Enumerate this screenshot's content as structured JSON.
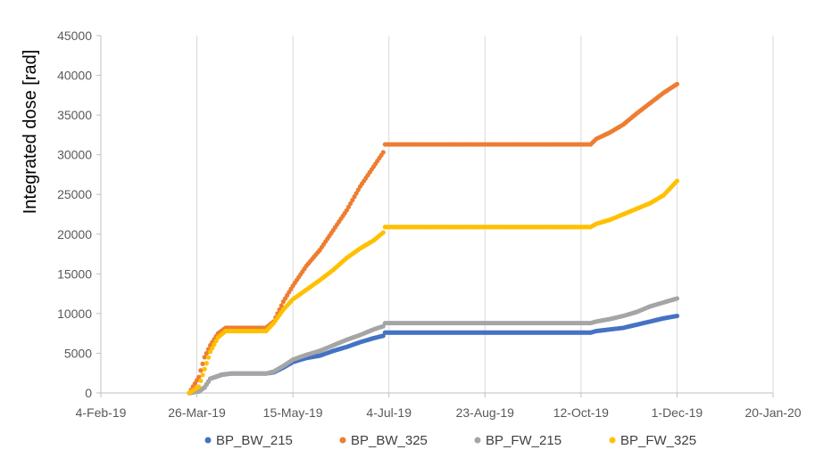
{
  "chart_data": {
    "type": "scatter",
    "title": "",
    "xlabel": "",
    "ylabel": "Integrated dose [rad]",
    "x_tick_labels": [
      "4-Feb-19",
      "26-Mar-19",
      "15-May-19",
      "4-Jul-19",
      "23-Aug-19",
      "12-Oct-19",
      "1-Dec-19",
      "20-Jan-20"
    ],
    "x_ticks": [
      "2019-02-04",
      "2019-03-26",
      "2019-05-15",
      "2019-07-04",
      "2019-08-23",
      "2019-10-12",
      "2019-12-01",
      "2020-01-20"
    ],
    "xlim": [
      "2019-02-04",
      "2020-01-20"
    ],
    "ylim": [
      0,
      45000
    ],
    "y_ticks": [
      0,
      5000,
      10000,
      15000,
      20000,
      25000,
      30000,
      35000,
      40000,
      45000
    ],
    "y_tick_labels": [
      "0",
      "5000",
      "10000",
      "15000",
      "20000",
      "25000",
      "30000",
      "35000",
      "40000",
      "45000"
    ],
    "grid": "vertical",
    "legend_position": "bottom",
    "series": [
      {
        "name": "BP_BW_215",
        "color": "#4472C4",
        "points": [
          [
            "2019-03-22",
            0
          ],
          [
            "2019-03-27",
            200
          ],
          [
            "2019-03-30",
            700
          ],
          [
            "2019-04-02",
            1800
          ],
          [
            "2019-04-08",
            2300
          ],
          [
            "2019-04-13",
            2450
          ],
          [
            "2019-05-01",
            2450
          ],
          [
            "2019-05-05",
            2600
          ],
          [
            "2019-05-10",
            3200
          ],
          [
            "2019-05-15",
            3900
          ],
          [
            "2019-05-22",
            4400
          ],
          [
            "2019-05-29",
            4700
          ],
          [
            "2019-06-05",
            5300
          ],
          [
            "2019-06-12",
            5800
          ],
          [
            "2019-06-19",
            6400
          ],
          [
            "2019-06-26",
            6900
          ],
          [
            "2019-07-01",
            7200
          ],
          [
            "2019-07-02",
            7600
          ],
          [
            "2019-10-17",
            7600
          ],
          [
            "2019-10-20",
            7800
          ],
          [
            "2019-10-27",
            8000
          ],
          [
            "2019-11-03",
            8200
          ],
          [
            "2019-11-10",
            8600
          ],
          [
            "2019-11-17",
            9000
          ],
          [
            "2019-11-24",
            9400
          ],
          [
            "2019-12-01",
            9700
          ]
        ]
      },
      {
        "name": "BP_BW_325",
        "color": "#ED7D31",
        "points": [
          [
            "2019-03-22",
            0
          ],
          [
            "2019-03-27",
            2000
          ],
          [
            "2019-03-30",
            4500
          ],
          [
            "2019-04-02",
            6000
          ],
          [
            "2019-04-06",
            7500
          ],
          [
            "2019-04-10",
            8200
          ],
          [
            "2019-04-15",
            8200
          ],
          [
            "2019-05-01",
            8200
          ],
          [
            "2019-05-05",
            9000
          ],
          [
            "2019-05-10",
            11500
          ],
          [
            "2019-05-15",
            13500
          ],
          [
            "2019-05-22",
            16000
          ],
          [
            "2019-05-29",
            18000
          ],
          [
            "2019-06-05",
            20500
          ],
          [
            "2019-06-12",
            23000
          ],
          [
            "2019-06-19",
            26000
          ],
          [
            "2019-06-26",
            28500
          ],
          [
            "2019-07-01",
            30300
          ],
          [
            "2019-07-02",
            31300
          ],
          [
            "2019-10-17",
            31300
          ],
          [
            "2019-10-20",
            32000
          ],
          [
            "2019-10-27",
            32800
          ],
          [
            "2019-11-03",
            33800
          ],
          [
            "2019-11-10",
            35200
          ],
          [
            "2019-11-17",
            36500
          ],
          [
            "2019-11-24",
            37800
          ],
          [
            "2019-12-01",
            38900
          ]
        ]
      },
      {
        "name": "BP_FW_215",
        "color": "#A5A5A5",
        "points": [
          [
            "2019-03-22",
            0
          ],
          [
            "2019-03-27",
            200
          ],
          [
            "2019-03-30",
            700
          ],
          [
            "2019-04-02",
            1800
          ],
          [
            "2019-04-08",
            2300
          ],
          [
            "2019-04-13",
            2450
          ],
          [
            "2019-05-01",
            2450
          ],
          [
            "2019-05-05",
            2700
          ],
          [
            "2019-05-10",
            3400
          ],
          [
            "2019-05-15",
            4200
          ],
          [
            "2019-05-22",
            4800
          ],
          [
            "2019-05-29",
            5300
          ],
          [
            "2019-06-05",
            6000
          ],
          [
            "2019-06-12",
            6700
          ],
          [
            "2019-06-19",
            7300
          ],
          [
            "2019-06-26",
            8000
          ],
          [
            "2019-07-01",
            8400
          ],
          [
            "2019-07-02",
            8800
          ],
          [
            "2019-10-17",
            8800
          ],
          [
            "2019-10-20",
            9000
          ],
          [
            "2019-10-27",
            9300
          ],
          [
            "2019-11-03",
            9700
          ],
          [
            "2019-11-10",
            10200
          ],
          [
            "2019-11-17",
            10900
          ],
          [
            "2019-11-24",
            11400
          ],
          [
            "2019-12-01",
            11900
          ]
        ]
      },
      {
        "name": "BP_FW_325",
        "color": "#FFC000",
        "points": [
          [
            "2019-03-22",
            0
          ],
          [
            "2019-03-27",
            800
          ],
          [
            "2019-03-30",
            3000
          ],
          [
            "2019-04-02",
            5200
          ],
          [
            "2019-04-06",
            7000
          ],
          [
            "2019-04-10",
            7800
          ],
          [
            "2019-04-15",
            7800
          ],
          [
            "2019-05-01",
            7800
          ],
          [
            "2019-05-05",
            8800
          ],
          [
            "2019-05-10",
            10500
          ],
          [
            "2019-05-15",
            11800
          ],
          [
            "2019-05-22",
            13000
          ],
          [
            "2019-05-29",
            14200
          ],
          [
            "2019-06-05",
            15500
          ],
          [
            "2019-06-12",
            17000
          ],
          [
            "2019-06-19",
            18200
          ],
          [
            "2019-06-26",
            19200
          ],
          [
            "2019-07-01",
            20200
          ],
          [
            "2019-07-02",
            20900
          ],
          [
            "2019-10-17",
            20900
          ],
          [
            "2019-10-20",
            21300
          ],
          [
            "2019-10-27",
            21800
          ],
          [
            "2019-11-03",
            22500
          ],
          [
            "2019-11-10",
            23200
          ],
          [
            "2019-11-17",
            23900
          ],
          [
            "2019-11-24",
            24900
          ],
          [
            "2019-12-01",
            26700
          ]
        ]
      }
    ]
  }
}
